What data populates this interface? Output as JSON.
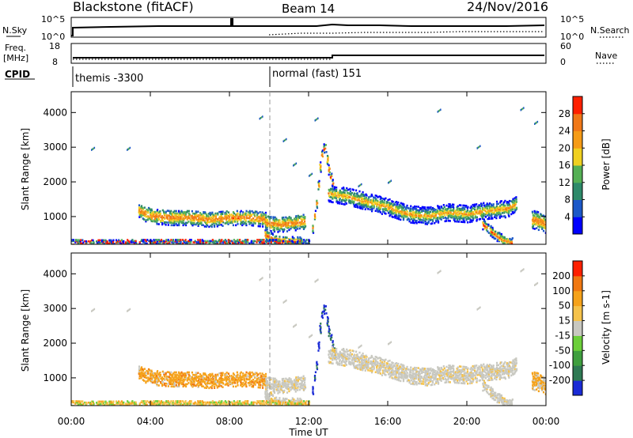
{
  "header": {
    "title": "Blackstone (fitACF)",
    "beam": "Beam 14",
    "date": "24/Nov/2016"
  },
  "top_panels": {
    "nsky_label": "N.Sky",
    "nsky_ticks": [
      "10^5",
      "10^0"
    ],
    "nsearch_label": "N.Search",
    "nsearch_ticks": [
      "10^5",
      "10^0"
    ],
    "freq_label": "Freq.",
    "freq_unit": "[MHz]",
    "freq_ticks": [
      "18",
      "8"
    ],
    "nave_label": "Nave",
    "nave_ticks": [
      "60",
      "0"
    ],
    "cpid_label": "CPID",
    "cpid_segments": [
      {
        "label": "themis -3300",
        "start_hour": 0
      },
      {
        "label": "normal (fast) 151",
        "start_hour": 10
      }
    ]
  },
  "x_axis": {
    "label": "Time UT",
    "ticks": [
      "00:00",
      "04:00",
      "08:00",
      "12:00",
      "16:00",
      "20:00",
      "00:00"
    ]
  },
  "chart_data": [
    {
      "type": "heatmap",
      "name": "power",
      "ylabel": "Slant Range [km]",
      "yticks": [
        1000,
        2000,
        3000,
        4000
      ],
      "ylim": [
        200,
        4600
      ],
      "xlim_hours": [
        0,
        24
      ],
      "colorbar": {
        "label": "Power [dB]",
        "ticks": [
          "4",
          "8",
          "12",
          "16",
          "20",
          "24",
          "28"
        ],
        "colors": [
          "#0000ff",
          "#1c58c8",
          "#2e8a6a",
          "#55b055",
          "#f0d020",
          "#f59b16",
          "#f07818",
          "#ff2000"
        ]
      },
      "features": [
        {
          "start_hour": 3.4,
          "end_hour": 9.8,
          "range_km": 1000,
          "level": "high"
        },
        {
          "start_hour": 9.8,
          "end_hour": 11.8,
          "range_km": 700,
          "level": "high"
        },
        {
          "start_hour": 12.5,
          "end_hour": 12.8,
          "range_km": 3000,
          "level": "high"
        },
        {
          "start_hour": 13,
          "end_hour": 22.3,
          "range_km": 1300,
          "level": "medium"
        },
        {
          "start_hour": 21.5,
          "end_hour": 22.4,
          "range_km": 300,
          "level": "high"
        }
      ]
    },
    {
      "type": "heatmap",
      "name": "velocity",
      "ylabel": "Slant Range [km]",
      "yticks": [
        1000,
        2000,
        3000,
        4000
      ],
      "ylim": [
        200,
        4600
      ],
      "xlim_hours": [
        0,
        24
      ],
      "colorbar": {
        "label": "Velocity [m s-1]",
        "ticks": [
          "200",
          "100",
          "50",
          "15",
          "-15",
          "-50",
          "-100",
          "-200"
        ],
        "colors": [
          "#1a2bd6",
          "#2f7a54",
          "#3f9f3f",
          "#6ccf3a",
          "#c8c8c0",
          "#f5c24a",
          "#f5a21a",
          "#f07812",
          "#ff2000"
        ]
      }
    }
  ]
}
